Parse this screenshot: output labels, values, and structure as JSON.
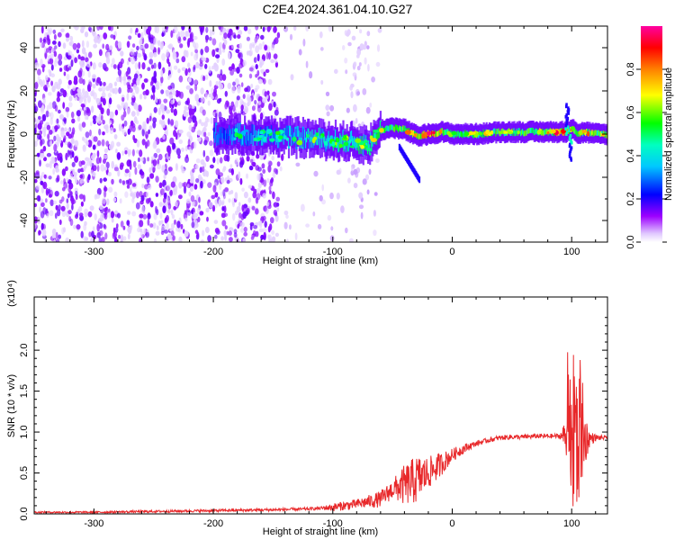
{
  "title": "C2E4.2024.361.04.10.G27",
  "chart_data": [
    {
      "type": "heatmap",
      "xlabel": "Height of straight line (km)",
      "ylabel": "Frequency (Hz)",
      "xlim": [
        -350,
        130
      ],
      "ylim": [
        -50,
        50
      ],
      "x_ticks": [
        -300,
        -200,
        -100,
        0,
        100
      ],
      "y_ticks": [
        -40,
        -20,
        0,
        20,
        40
      ],
      "colorbar": {
        "label": "Normalized spectral amplitude",
        "range": [
          0,
          1
        ],
        "ticks": [
          "0.0",
          "0.2",
          "0.4",
          "0.6",
          "0.8"
        ],
        "colors": [
          "#ffffff",
          "#9d00ff",
          "#0000ff",
          "#00ffff",
          "#00ff00",
          "#ffff00",
          "#ff8000",
          "#ff0000",
          "#ff00a0"
        ]
      },
      "ridge": {
        "description_points_x": [
          -190,
          -150,
          -120,
          -100,
          -80,
          -70,
          -60,
          -50,
          -40,
          -30,
          -20,
          -10,
          0,
          20,
          40,
          60,
          80,
          95,
          100,
          105,
          110,
          120,
          130
        ],
        "description_points_y": [
          0,
          -1,
          -2,
          -3,
          -4,
          -5,
          2,
          3,
          2,
          -1,
          0,
          1,
          0,
          0,
          1,
          1,
          1,
          1,
          3,
          0,
          1,
          0,
          0
        ],
        "level": [
          0.3,
          0.35,
          0.4,
          0.45,
          0.45,
          0.45,
          0.5,
          0.55,
          0.6,
          0.65,
          0.85,
          0.6,
          0.5,
          0.5,
          0.55,
          0.55,
          0.6,
          0.8,
          0.6,
          0.5,
          0.6,
          0.6,
          0.55
        ]
      },
      "noise_region_x": [
        -350,
        -140
      ],
      "sparse_region_x": [
        -140,
        -70
      ]
    },
    {
      "type": "line",
      "xlabel": "Height of straight line (km)",
      "ylabel": "SNR (10 * v/v)",
      "y_multiplier_label": "(x10⁴)",
      "xlim": [
        -350,
        130
      ],
      "ylim": [
        0,
        2.65
      ],
      "x_ticks": [
        -300,
        -200,
        -100,
        0,
        100
      ],
      "y_ticks": [
        0.0,
        0.5,
        1.0,
        1.5,
        2.0
      ],
      "y_tick_labels": [
        "0.0",
        "0.5",
        "1.0",
        "1.5",
        "2.0"
      ],
      "series": [
        {
          "color": "#e8282a",
          "envelope_x": [
            -350,
            -300,
            -250,
            -200,
            -150,
            -120,
            -100,
            -80,
            -60,
            -50,
            -40,
            -30,
            -20,
            -10,
            0,
            10,
            20,
            30,
            40,
            50,
            60,
            70,
            80,
            90,
            95,
            100,
            105,
            110,
            115,
            120,
            130
          ],
          "envelope_y": [
            0.02,
            0.02,
            0.03,
            0.04,
            0.05,
            0.06,
            0.08,
            0.12,
            0.18,
            0.3,
            0.35,
            0.42,
            0.5,
            0.6,
            0.72,
            0.8,
            0.86,
            0.9,
            0.93,
            0.94,
            0.94,
            0.95,
            0.95,
            0.95,
            0.96,
            0.95,
            0.9,
            0.92,
            0.92,
            0.93,
            0.93
          ],
          "noise_x": [
            -350,
            -110,
            -100,
            -80,
            -50,
            -40,
            -30,
            -20,
            -10,
            0,
            10,
            20,
            90,
            95,
            100,
            103,
            106,
            110,
            115,
            120,
            130
          ],
          "noise_amp": [
            0.01,
            0.02,
            0.05,
            0.06,
            0.12,
            0.25,
            0.3,
            0.2,
            0.15,
            0.08,
            0.06,
            0.03,
            0.03,
            0.2,
            0.9,
            1.2,
            0.8,
            0.4,
            0.1,
            0.04,
            0.02
          ]
        }
      ]
    }
  ]
}
